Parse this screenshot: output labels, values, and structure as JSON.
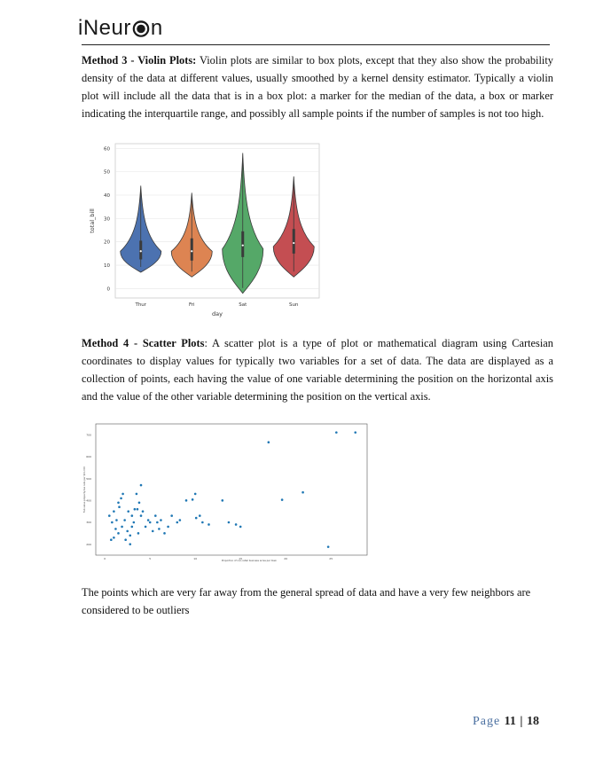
{
  "header": {
    "logo_prefix": "iNeur",
    "logo_suffix": "n"
  },
  "method3": {
    "title": "Method 3 - Violin Plots:",
    "body": "Violin plots are similar to box plots, except that they also show the probability density of the data at different values, usually smoothed by a kernel density estimator. Typically a violin plot will include all the data that is in a box plot: a marker for the median of the data, a box or marker indicating the interquartile range, and possibly all sample points if the number of samples is not too high."
  },
  "method4": {
    "title": "Method 4 - Scatter Plots",
    "body": ": A scatter plot is a type of plot or mathematical diagram using Cartesian coordinates to display values for typically two variables for a set of data. The data are displayed as a collection of points, each having the value of one variable determining the position on the horizontal axis and the value of the other variable determining the position on the vertical axis."
  },
  "conclusion": "The points which are very far away from the general spread of data and have a very few neighbors are considered to be outliers",
  "footer": {
    "page_label": "Page",
    "page_number": "11",
    "separator": "|",
    "total_pages": "18"
  },
  "chart_data": [
    {
      "type": "violin",
      "xlabel": "day",
      "ylabel": "total_bill",
      "categories": [
        "Thur",
        "Fri",
        "Sat",
        "Sun"
      ],
      "ylim": [
        -4,
        62
      ],
      "yticks": [
        0,
        10,
        20,
        30,
        40,
        50,
        60
      ],
      "colors": [
        "#4c72b0",
        "#dd8452",
        "#55a868",
        "#c44e52"
      ],
      "series": [
        {
          "category": "Thur",
          "min": 7,
          "max": 44,
          "q1": 12.5,
          "median": 16,
          "q3": 20.5,
          "mode": 16
        },
        {
          "category": "Fri",
          "min": 5,
          "max": 41,
          "q1": 12,
          "median": 16,
          "q3": 21.5,
          "mode": 16
        },
        {
          "category": "Sat",
          "min": -2,
          "max": 58,
          "q1": 13.5,
          "median": 18.5,
          "q3": 24.5,
          "mode": 17
        },
        {
          "category": "Sun",
          "min": 5,
          "max": 48,
          "q1": 15,
          "median": 19.5,
          "q3": 25.5,
          "mode": 18
        }
      ],
      "grid": true
    },
    {
      "type": "scatter",
      "xlabel": "Proportion of non-retail business acres per town",
      "ylabel": "Full-value property-tax rate per $10,000",
      "xlim": [
        -1,
        29
      ],
      "ylim": [
        150,
        750
      ],
      "xticks": [
        0,
        5,
        10,
        15,
        20,
        25
      ],
      "yticks": [
        200,
        300,
        400,
        500,
        600,
        700
      ],
      "color": "#1f77b4",
      "points": [
        [
          1.5,
          390
        ],
        [
          1.8,
          410
        ],
        [
          2.0,
          430
        ],
        [
          1.6,
          370
        ],
        [
          1.0,
          350
        ],
        [
          0.5,
          330
        ],
        [
          0.8,
          300
        ],
        [
          1.2,
          270
        ],
        [
          1.5,
          250
        ],
        [
          2.2,
          310
        ],
        [
          2.5,
          260
        ],
        [
          1.0,
          230
        ],
        [
          0.7,
          220
        ],
        [
          2.8,
          240
        ],
        [
          3.0,
          280
        ],
        [
          3.2,
          300
        ],
        [
          3.0,
          330
        ],
        [
          3.3,
          360
        ],
        [
          3.5,
          430
        ],
        [
          4.0,
          470
        ],
        [
          3.8,
          390
        ],
        [
          3.6,
          360
        ],
        [
          4.2,
          350
        ],
        [
          4.5,
          280
        ],
        [
          5.0,
          300
        ],
        [
          5.3,
          260
        ],
        [
          5.6,
          330
        ],
        [
          5.8,
          300
        ],
        [
          6.0,
          270
        ],
        [
          6.2,
          310
        ],
        [
          6.6,
          250
        ],
        [
          7.0,
          280
        ],
        [
          7.4,
          330
        ],
        [
          8.0,
          300
        ],
        [
          8.3,
          310
        ],
        [
          9.0,
          400
        ],
        [
          9.7,
          404
        ],
        [
          10.0,
          430
        ],
        [
          10.1,
          320
        ],
        [
          10.5,
          330
        ],
        [
          10.8,
          300
        ],
        [
          11.5,
          290
        ],
        [
          13.0,
          400
        ],
        [
          13.7,
          300
        ],
        [
          14.5,
          290
        ],
        [
          15.0,
          280
        ],
        [
          2.3,
          220
        ],
        [
          2.8,
          200
        ],
        [
          1.9,
          280
        ],
        [
          1.3,
          310
        ],
        [
          2.6,
          350
        ],
        [
          4.0,
          330
        ],
        [
          4.8,
          310
        ],
        [
          3.7,
          250
        ],
        [
          18.1,
          666
        ],
        [
          19.6,
          403
        ],
        [
          21.9,
          437
        ],
        [
          25.6,
          711
        ],
        [
          24.7,
          188
        ],
        [
          27.7,
          711
        ]
      ],
      "grid": false
    }
  ]
}
